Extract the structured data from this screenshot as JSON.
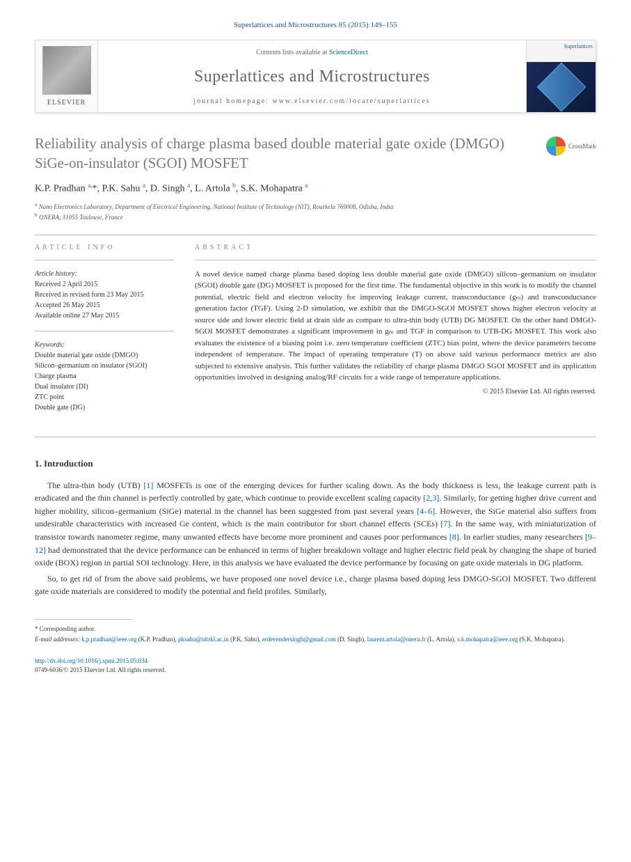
{
  "citation": "Superlattices and Microstructures 85 (2015) 149–155",
  "banner": {
    "contents_prefix": "Contents lists available at ",
    "contents_link": "ScienceDirect",
    "journal": "Superlattices and Microstructures",
    "homepage_prefix": "journal homepage: ",
    "homepage_url": "www.elsevier.com/locate/superlattices",
    "elsevier": "ELSEVIER",
    "cover_label": "Superlattices"
  },
  "crossmark": "CrossMark",
  "title": "Reliability analysis of charge plasma based double material gate oxide (DMGO) SiGe-on-insulator (SGOI) MOSFET",
  "authors_html": "K.P. Pradhan <sup>a,</sup><span class='corr'>*</span>, P.K. Sahu <sup>a</sup>, D. Singh <sup>a</sup>, L. Artola <sup>b</sup>, S.K. Mohapatra <sup>a</sup>",
  "affiliations": [
    {
      "sup": "a",
      "text": "Nano Electronics Laboratory, Department of Electrical Engineering, National Institute of Technology (NIT), Rourkela 769008, Odisha, India"
    },
    {
      "sup": "b",
      "text": "ONERA, 31055 Toulouse, France"
    }
  ],
  "info_heading": "ARTICLE INFO",
  "abstract_heading": "ABSTRACT",
  "history_label": "Article history:",
  "history": [
    "Received 2 April 2015",
    "Received in revised form 23 May 2015",
    "Accepted 26 May 2015",
    "Available online 27 May 2015"
  ],
  "keywords_label": "Keywords:",
  "keywords": [
    "Double material gate oxide (DMGO)",
    "Silicon–germanium on insulator (SGOI)",
    "Charge plasma",
    "Dual insulator (DI)",
    "ZTC point",
    "Double gate (DG)"
  ],
  "abstract": "A novel device named charge plasma based doping less double material gate oxide (DMGO) silicon–germanium on insulator (SGOI) double gate (DG) MOSFET is proposed for the first time. The fundamental objective in this work is to modify the channel potential, electric field and electron velocity for improving leakage current, transconductance (gₘ) and transconductance generation factor (TGF). Using 2-D simulation, we exhibit that the DMGO-SGOI MOSFET shows higher electron velocity at source side and lower electric field at drain side as compare to ultra-thin body (UTB) DG MOSFET. On the other hand DMGO-SGOI MOSFET demonstrates a significant improvement in gₘ and TGF in comparison to UTB-DG MOSFET. This work also evaluates the existence of a biasing point i.e. zero temperature coefficient (ZTC) bias point, where the device parameters become independent of temperature. The impact of operating temperature (T) on above said various performance metrics are also subjected to extensive analysis. This further validates the reliability of charge plasma DMGO SGOI MOSFET and its application opportunities involved in designing analog/RF circuits for a wide range of temperature applications.",
  "copyright": "© 2015 Elsevier Ltd. All rights reserved.",
  "intro_heading": "1. Introduction",
  "para1": "The ultra-thin body (UTB) [1] MOSFETs is one of the emerging devices for further scaling down. As the body thickness is less, the leakage current path is eradicated and the thin channel is perfectly controlled by gate, which continue to provide excellent scaling capacity [2,3]. Similarly, for getting higher drive current and higher mobility, silicon–germanium (SiGe) material in the channel has been suggested from past several years [4–6]. However, the SiGe material also suffers from undesirable characteristics with increased Ge content, which is the main contributor for short channel effects (SCEs) [7]. In the same way, with miniaturization of transistor towards nanometer regime, many unwanted effects have become more prominent and causes poor performances [8]. In earlier studies, many researchers [9–12] had demonstrated that the device performance can be enhanced in terms of higher breakdown voltage and higher electric field peak by changing the shape of buried oxide (BOX) region in partial SOI technology. Here, in this analysis we have evaluated the device performance by focusing on gate oxide materials in DG platform.",
  "para2": "So, to get rid of from the above said problems, we have proposed one novel device i.e., charge plasma based doping less DMGO-SGOI MOSFET. Two different gate oxide materials are considered to modify the potential and field profiles. Similarly,",
  "corresponding": "* Corresponding author.",
  "emails_label": "E-mail addresses:",
  "emails": [
    {
      "addr": "k.p.pradhan@ieee.org",
      "who": "(K.P. Pradhan)"
    },
    {
      "addr": "pksahu@nitrkl.ac.in",
      "who": "(P.K. Sahu)"
    },
    {
      "addr": "erdevendersingh@gmail.com",
      "who": "(D. Singh)"
    },
    {
      "addr": "laurent.artola@onera.fr",
      "who": "(L. Artola)"
    },
    {
      "addr": "s.k.mohapatra@ieee.org",
      "who": "(S.K. Mohapatra)."
    }
  ],
  "doi": "http://dx.doi.org/10.1016/j.spmi.2015.05.034",
  "issn_line": "0749-6036/© 2015 Elsevier Ltd. All rights reserved.",
  "refs": {
    "r1": "[1]",
    "r23": "[2,3]",
    "r46": "[4–6]",
    "r7": "[7]",
    "r8": "[8]",
    "r912": "[9–12]"
  },
  "colors": {
    "link": "#0066b3",
    "title_gray": "#787878",
    "text": "#333333"
  }
}
